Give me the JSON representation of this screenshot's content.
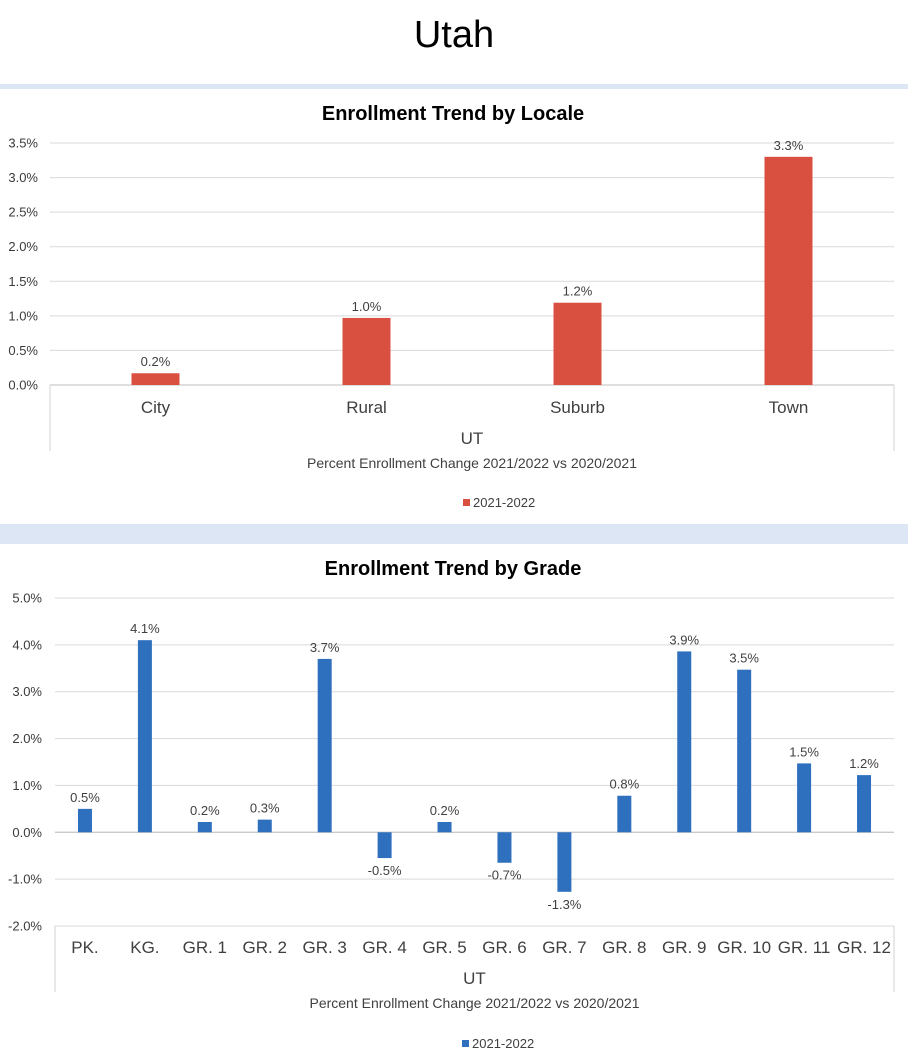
{
  "page": {
    "title": "Utah"
  },
  "chart_data": [
    {
      "type": "bar",
      "title": "Enrollment Trend by Locale",
      "categories": [
        "City",
        "Rural",
        "Suburb",
        "Town"
      ],
      "group_label": "UT",
      "xlabel": "Percent Enrollment Change 2021/2022 vs 2020/2021",
      "ylabel": "",
      "ylim": [
        0,
        3.5
      ],
      "ytick_step": 0.5,
      "ytick_decimals": 1,
      "grid": true,
      "legend_position": "bottom",
      "series": [
        {
          "name": "2021-2022",
          "color": "#d95040",
          "values": [
            0.17,
            0.97,
            1.19,
            3.3
          ],
          "labels": [
            "0.2%",
            "1.0%",
            "1.2%",
            "3.3%"
          ]
        }
      ]
    },
    {
      "type": "bar",
      "title": "Enrollment Trend by Grade",
      "categories": [
        "PK.",
        "KG.",
        "GR. 1",
        "GR. 2",
        "GR. 3",
        "GR. 4",
        "GR. 5",
        "GR. 6",
        "GR. 7",
        "GR. 8",
        "GR. 9",
        "GR. 10",
        "GR. 11",
        "GR. 12"
      ],
      "group_label": "UT",
      "xlabel": "Percent Enrollment Change 2021/2022 vs 2020/2021",
      "ylabel": "",
      "ylim": [
        -2.0,
        5.0
      ],
      "ytick_step": 1.0,
      "ytick_decimals": 1,
      "grid": true,
      "legend_position": "bottom",
      "series": [
        {
          "name": "2021-2022",
          "color": "#2e6fbe",
          "values": [
            0.5,
            4.1,
            0.22,
            0.27,
            3.7,
            -0.55,
            0.22,
            -0.65,
            -1.27,
            0.78,
            3.86,
            3.47,
            1.47,
            1.22
          ],
          "labels": [
            "0.5%",
            "4.1%",
            "0.2%",
            "0.3%",
            "3.7%",
            "-0.5%",
            "0.2%",
            "-0.7%",
            "-1.3%",
            "0.8%",
            "3.9%",
            "3.5%",
            "1.5%",
            "1.2%"
          ]
        }
      ]
    }
  ]
}
